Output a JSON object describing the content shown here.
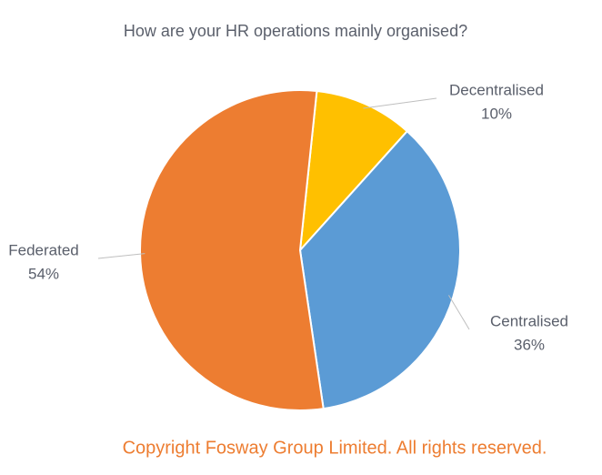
{
  "chart_data": {
    "type": "pie",
    "title": "How are your HR operations mainly organised?",
    "categories": [
      "Decentralised",
      "Centralised",
      "Federated"
    ],
    "values": [
      10,
      36,
      54
    ],
    "value_labels": [
      "10%",
      "36%",
      "54%"
    ],
    "colors": [
      "#ffc000",
      "#5b9bd5",
      "#ed7d31"
    ]
  },
  "footer": "Copyright Fosway Group Limited. All rights reserved."
}
